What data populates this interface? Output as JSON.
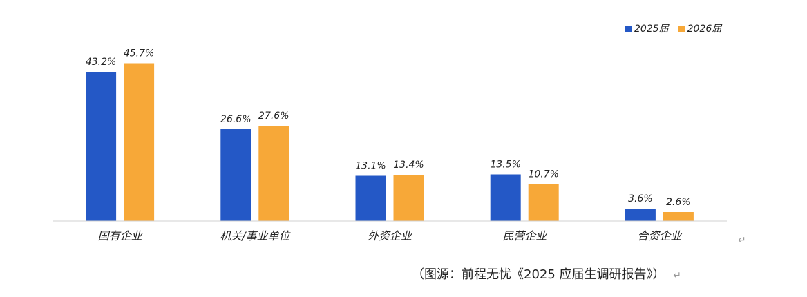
{
  "chart_data": {
    "type": "bar",
    "categories": [
      "国有企业",
      "机关/事业单位",
      "外资企业",
      "民营企业",
      "合资企业"
    ],
    "series": [
      {
        "name": "2025届",
        "values": [
          43.2,
          26.6,
          13.1,
          13.5,
          3.6
        ],
        "labels": [
          "43.2%",
          "26.6%",
          "13.1%",
          "13.5%",
          "3.6%"
        ],
        "color": "#2458C6"
      },
      {
        "name": "2026届",
        "values": [
          45.7,
          27.6,
          13.4,
          10.7,
          2.6
        ],
        "labels": [
          "45.7%",
          "27.6%",
          "13.4%",
          "10.7%",
          "2.6%"
        ],
        "color": "#F7A838"
      }
    ],
    "ylim": [
      0,
      50
    ],
    "grid": false,
    "legend_position": "top-right"
  },
  "caption": "（图源：前程无忧《2025 应届生调研报告》）",
  "return_mark": "↵"
}
